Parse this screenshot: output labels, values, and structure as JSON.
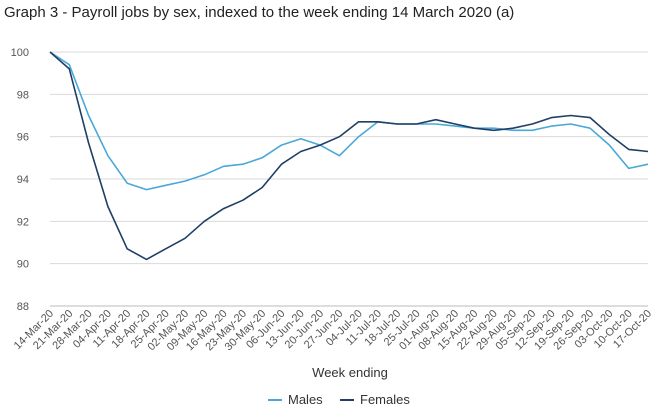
{
  "chart_data": {
    "type": "line",
    "title": "Graph 3 - Payroll jobs by sex, indexed to the week ending 14 March 2020 (a)",
    "xlabel": "Week ending",
    "ylabel": "",
    "ylim": [
      88,
      100
    ],
    "yticks": [
      88,
      90,
      92,
      94,
      96,
      98,
      100
    ],
    "grid": "horizontal",
    "legend": "bottom",
    "categories": [
      "14-Mar-20",
      "21-Mar-20",
      "28-Mar-20",
      "04-Apr-20",
      "11-Apr-20",
      "18-Apr-20",
      "25-Apr-20",
      "02-May-20",
      "09-May-20",
      "16-May-20",
      "23-May-20",
      "30-May-20",
      "06-Jun-20",
      "13-Jun-20",
      "20-Jun-20",
      "27-Jun-20",
      "04-Jul-20",
      "11-Jul-20",
      "18-Jul-20",
      "25-Jul-20",
      "01-Aug-20",
      "08-Aug-20",
      "15-Aug-20",
      "22-Aug-20",
      "29-Aug-20",
      "05-Sep-20",
      "12-Sep-20",
      "19-Sep-20",
      "26-Sep-20",
      "03-Oct-20",
      "10-Oct-20",
      "17-Oct-20"
    ],
    "series": [
      {
        "name": "Males",
        "color": "#4aa8d8",
        "values": [
          100.0,
          99.4,
          97.0,
          95.1,
          93.8,
          93.5,
          93.7,
          93.9,
          94.2,
          94.6,
          94.7,
          95.0,
          95.6,
          95.9,
          95.6,
          95.1,
          96.0,
          96.7,
          96.6,
          96.6,
          96.6,
          96.5,
          96.4,
          96.4,
          96.3,
          96.3,
          96.5,
          96.6,
          96.4,
          95.6,
          94.5,
          94.7
        ]
      },
      {
        "name": "Females",
        "color": "#1f3f66",
        "values": [
          100.0,
          99.2,
          95.7,
          92.7,
          90.7,
          90.2,
          90.7,
          91.2,
          92.0,
          92.6,
          93.0,
          93.6,
          94.7,
          95.3,
          95.6,
          96.0,
          96.7,
          96.7,
          96.6,
          96.6,
          96.8,
          96.6,
          96.4,
          96.3,
          96.4,
          96.6,
          96.9,
          97.0,
          96.9,
          96.1,
          95.4,
          95.3
        ]
      }
    ]
  }
}
